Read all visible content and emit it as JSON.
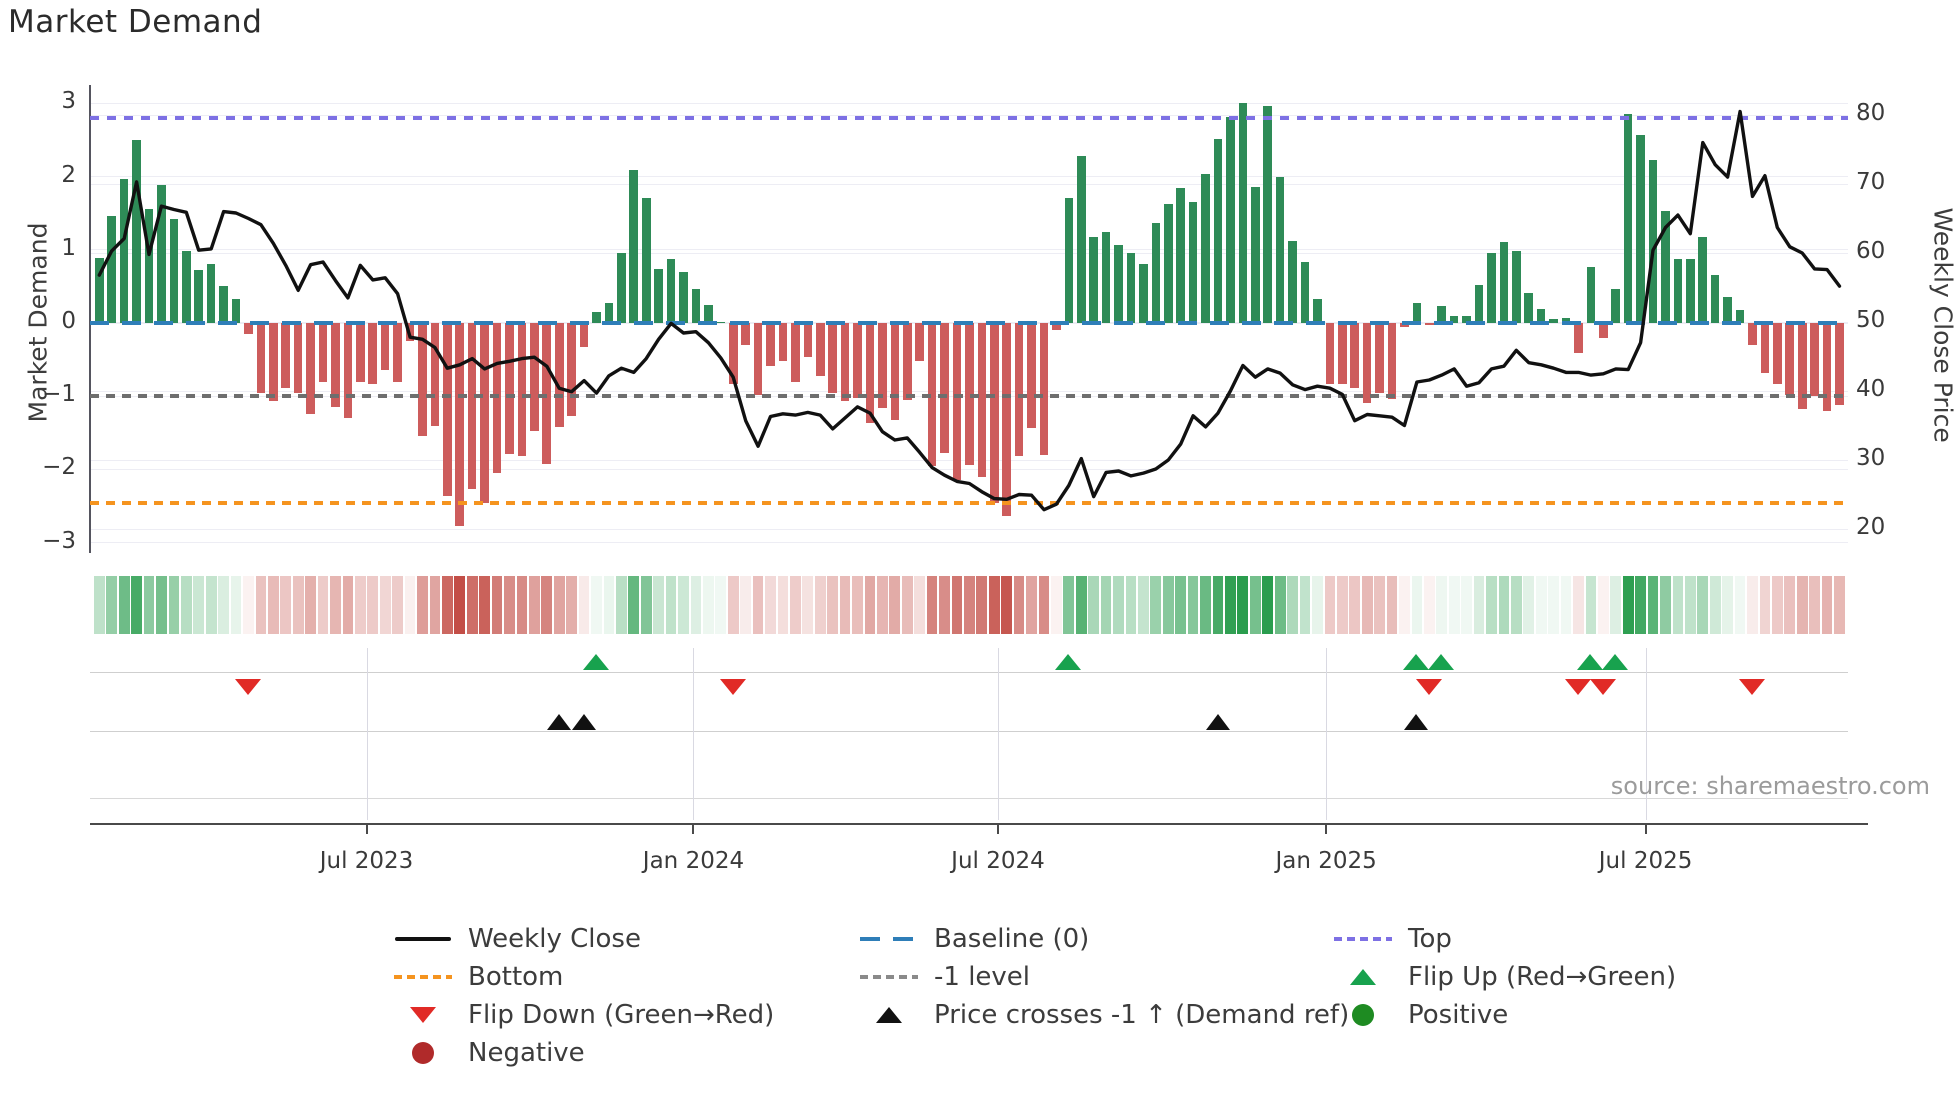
{
  "title": "Market Demand",
  "source_note": "source: sharemaestro.com",
  "colors": {
    "green_bar": "#2e8b57",
    "red_bar": "#cd5c5c",
    "baseline": "#2e7eb8",
    "top_line": "#7d70e4",
    "bottom_line": "#f5941f",
    "minus_one_line": "#6e6e6e",
    "price_line": "#111111",
    "flip_up": "#18a24e",
    "flip_down": "#e12a26",
    "price_cross": "#111111",
    "positive_dot": "#1e8b22",
    "negative_dot": "#b02a2a",
    "heat_green": "#2a9d4e",
    "heat_red": "#c0463e"
  },
  "chart_data": {
    "type": "bar",
    "title": "Market Demand",
    "ylabel_left": "Market Demand",
    "ylabel_right": "Weekly Close Price",
    "ylim_left": [
      -3.1,
      3.25
    ],
    "ylim_right": [
      19,
      83
    ],
    "grid": true,
    "yticks_left": [
      "3",
      "2",
      "1",
      "0",
      "−1",
      "−2",
      "−3"
    ],
    "yticks_left_values": [
      3,
      2,
      1,
      0,
      -1,
      -2,
      -3
    ],
    "yticks_right": [
      "80",
      "70",
      "60",
      "50",
      "40",
      "30",
      "20"
    ],
    "yticks_right_values": [
      80,
      70,
      60,
      50,
      40,
      30,
      20
    ],
    "xticks": [
      {
        "label": "Jul 2023",
        "week_index": 21.5
      },
      {
        "label": "Jan 2024",
        "week_index": 47.8
      },
      {
        "label": "Jul 2024",
        "week_index": 72.3
      },
      {
        "label": "Jan 2025",
        "week_index": 98.7
      },
      {
        "label": "Jul 2025",
        "week_index": 124.4
      }
    ],
    "reference_lines": {
      "top": 2.8,
      "baseline": 0,
      "minus_one": -1,
      "bottom": -2.46
    },
    "series": [
      {
        "name": "Market Demand (weekly bars)",
        "axis": "left",
        "values": [
          0.89,
          1.46,
          1.97,
          2.5,
          1.56,
          1.88,
          1.42,
          0.98,
          0.72,
          0.81,
          0.5,
          0.33,
          -0.15,
          -0.96,
          -1.06,
          -0.89,
          -0.96,
          -1.24,
          -0.81,
          -1.15,
          -1.3,
          -0.8,
          -0.83,
          -0.64,
          -0.81,
          -0.24,
          -1.54,
          -1.41,
          -2.37,
          -2.77,
          -2.27,
          -2.46,
          -2.05,
          -1.79,
          -1.82,
          -1.47,
          -1.93,
          -1.42,
          -1.27,
          -0.33,
          0.15,
          0.28,
          0.95,
          2.09,
          1.71,
          0.74,
          0.87,
          0.69,
          0.46,
          0.24,
          0.02,
          -0.84,
          -0.3,
          -0.98,
          -0.59,
          -0.52,
          -0.8,
          -0.46,
          -0.73,
          -0.96,
          -1.06,
          -1.02,
          -1.37,
          -1.16,
          -1.32,
          -1.05,
          -0.52,
          -1.95,
          -1.78,
          -2.15,
          -1.94,
          -2.1,
          -2.46,
          -2.63,
          -1.82,
          -1.43,
          -1.8,
          -0.1,
          1.71,
          2.28,
          1.17,
          1.24,
          1.07,
          0.96,
          0.81,
          1.37,
          1.63,
          1.84,
          1.65,
          2.03,
          2.51,
          2.81,
          3.01,
          1.86,
          2.97,
          1.99,
          1.12,
          0.84,
          0.33,
          -0.84,
          -0.83,
          -0.89,
          -1.09,
          -0.96,
          -1.04,
          -0.05,
          0.27,
          -0.03,
          0.23,
          0.1,
          0.1,
          0.52,
          0.96,
          1.1,
          0.98,
          0.41,
          0.19,
          0.06,
          0.07,
          -0.41,
          0.77,
          -0.2,
          0.46,
          2.85,
          2.57,
          2.23,
          1.53,
          0.87,
          0.87,
          1.18,
          0.66,
          0.36,
          0.18,
          -0.3,
          -0.68,
          -0.84,
          -0.98,
          -1.18,
          -1.0,
          -1.2,
          -1.12
        ]
      },
      {
        "name": "Weekly Close",
        "axis": "right",
        "values": [
          56.8,
          60.3,
          62.1,
          70.3,
          59.8,
          66.8,
          66.3,
          65.9,
          60.4,
          60.6,
          66.0,
          65.8,
          65.0,
          64.1,
          61.4,
          58.2,
          54.6,
          58.3,
          58.7,
          56.0,
          53.5,
          58.2,
          56.1,
          56.4,
          54.1,
          47.8,
          47.5,
          46.3,
          43.3,
          43.8,
          44.7,
          43.2,
          44.0,
          44.3,
          44.7,
          44.9,
          43.6,
          40.4,
          39.9,
          41.5,
          39.7,
          42.2,
          43.3,
          42.7,
          44.7,
          47.5,
          49.8,
          48.4,
          48.6,
          47.0,
          44.8,
          42.0,
          35.7,
          32.0,
          36.3,
          36.7,
          36.5,
          36.9,
          36.5,
          34.5,
          36.1,
          37.7,
          36.8,
          34.1,
          32.9,
          33.2,
          31.1,
          28.9,
          27.8,
          26.9,
          26.6,
          25.4,
          24.4,
          24.3,
          25.0,
          24.9,
          22.8,
          23.6,
          26.3,
          30.2,
          24.7,
          28.2,
          28.4,
          27.7,
          28.1,
          28.7,
          30.0,
          32.3,
          36.4,
          34.8,
          36.8,
          40.0,
          43.7,
          42.0,
          43.2,
          42.6,
          40.9,
          40.2,
          40.7,
          40.4,
          39.5,
          35.7,
          36.6,
          36.4,
          36.2,
          35.0,
          41.3,
          41.6,
          42.3,
          43.2,
          40.7,
          41.2,
          43.2,
          43.6,
          45.9,
          44.1,
          43.8,
          43.3,
          42.7,
          42.7,
          42.3,
          42.5,
          43.2,
          43.1,
          47.0,
          60.4,
          63.7,
          65.5,
          62.8,
          76.0,
          72.8,
          71.0,
          80.5,
          68.2,
          71.2,
          63.7,
          60.9,
          60.0,
          57.7,
          57.6,
          55.2
        ]
      }
    ],
    "heatmap": "mirror of weekly demand values as green/red intensity strip",
    "markers": {
      "flip_up_weeks": [
        41,
        79,
        107,
        109,
        121,
        123
      ],
      "flip_down_weeks": [
        13,
        52,
        108,
        120,
        122,
        134
      ],
      "price_cross_weeks": [
        38,
        40,
        91,
        107
      ]
    }
  },
  "legend": {
    "columns": [
      [
        {
          "id": "weekly-close",
          "symbol": "line",
          "color": "#111111",
          "label": "Weekly Close"
        },
        {
          "id": "bottom",
          "symbol": "dashes",
          "color": "#f5941f",
          "label": "Bottom"
        },
        {
          "id": "flip-down",
          "symbol": "tri-down",
          "color": "#e12a26",
          "label": "Flip Down (Green→Red)"
        },
        {
          "id": "negative",
          "symbol": "circle",
          "color": "#b02a2a",
          "label": "Negative"
        }
      ],
      [
        {
          "id": "baseline",
          "symbol": "long-dashes",
          "color": "#2e7eb8",
          "label": "Baseline (0)"
        },
        {
          "id": "minus-1-level",
          "symbol": "dashes",
          "color": "#8a8a8a",
          "label": "-1 level"
        },
        {
          "id": "price-crosses",
          "symbol": "tri-up",
          "color": "#111111",
          "label": "Price crosses -1 ↑ (Demand ref)"
        }
      ],
      [
        {
          "id": "top",
          "symbol": "dashes",
          "color": "#7d70e4",
          "label": "Top"
        },
        {
          "id": "flip-up",
          "symbol": "tri-up",
          "color": "#18a24e",
          "label": "Flip Up (Red→Green)"
        },
        {
          "id": "positive",
          "symbol": "circle",
          "color": "#1e8b22",
          "label": "Positive"
        }
      ]
    ]
  }
}
